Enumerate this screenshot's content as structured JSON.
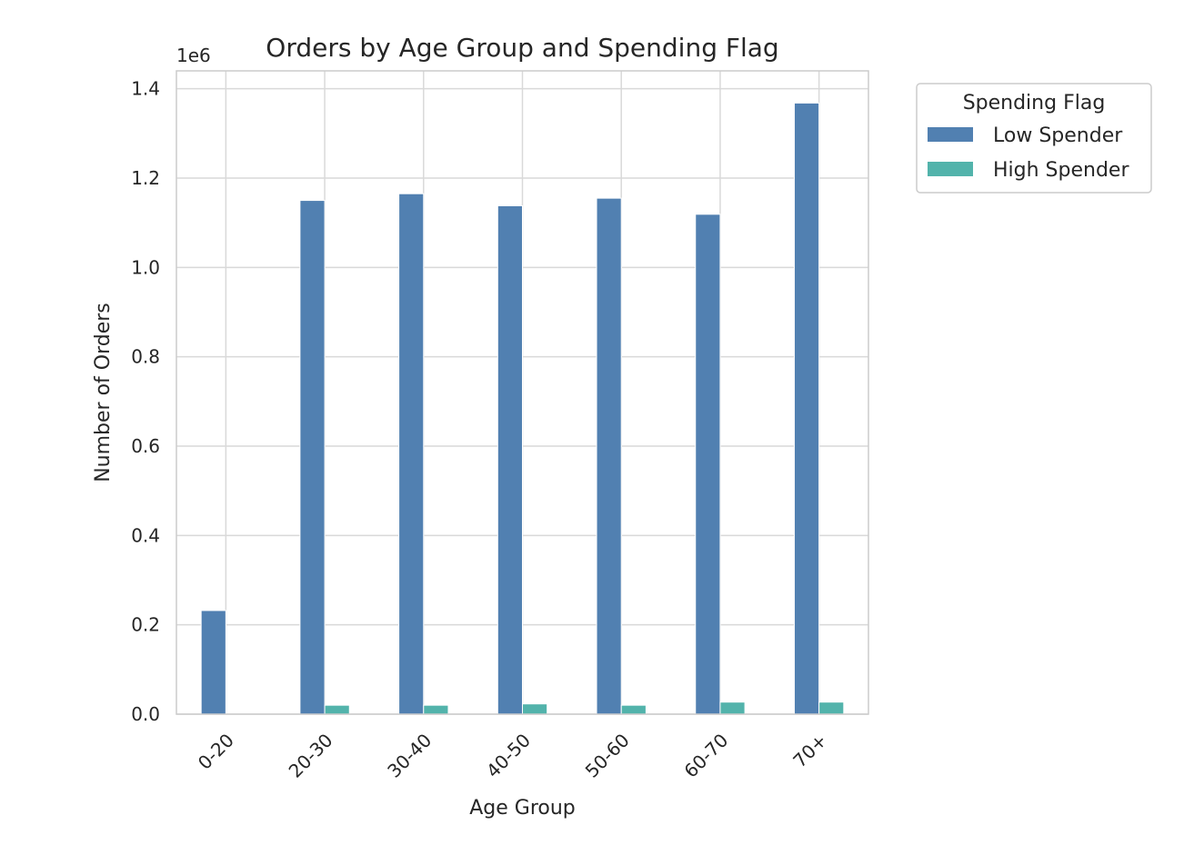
{
  "chart_data": {
    "type": "bar",
    "title": "Orders by Age Group and Spending Flag",
    "xlabel": "Age Group",
    "ylabel": "Number of Orders",
    "y_offset_label": "1e6",
    "categories": [
      "0-20",
      "20-30",
      "30-40",
      "40-50",
      "50-60",
      "60-70",
      "70+"
    ],
    "series": [
      {
        "name": "Low Spender",
        "color": "#5180b1",
        "values": [
          232000,
          1150000,
          1165000,
          1138000,
          1155000,
          1119000,
          1368000
        ]
      },
      {
        "name": "High Spender",
        "color": "#52b3ab",
        "values": [
          0,
          20000,
          20000,
          23000,
          20000,
          27000,
          27000
        ]
      }
    ],
    "ylim": [
      0,
      1440000
    ],
    "yticks": [
      0,
      200000,
      400000,
      600000,
      800000,
      1000000,
      1200000,
      1400000
    ],
    "ytick_labels": [
      "0.0",
      "0.2",
      "0.4",
      "0.6",
      "0.8",
      "1.0",
      "1.2",
      "1.4"
    ],
    "grid": true,
    "legend_title": "Spending Flag",
    "legend_position": "outside-top-right"
  }
}
